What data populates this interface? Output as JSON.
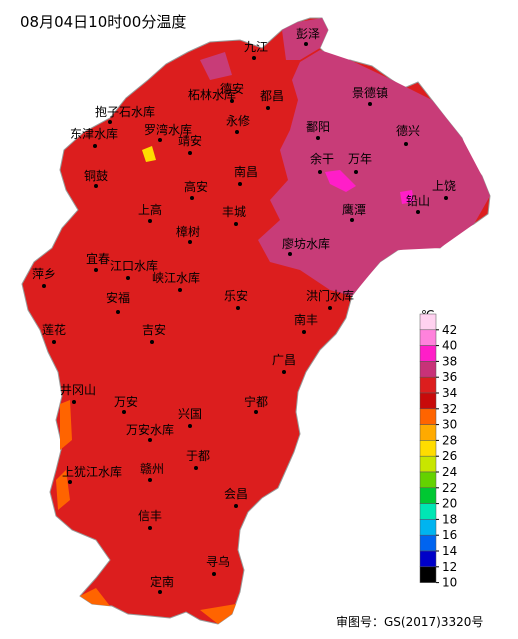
{
  "title": "08月04日10时00分温度",
  "footer": "审图号：GS(2017)3320号",
  "cities": [
    "彭泽",
    "九江",
    "德安",
    "都昌",
    "柘林水库",
    "景德镇",
    "抱子石水库",
    "永修",
    "鄱阳",
    "德兴",
    "东津水库",
    "罗湾水库",
    "靖安",
    "铜鼓",
    "余干",
    "万年",
    "南昌",
    "高安",
    "上饶",
    "铅山",
    "上高",
    "丰城",
    "鹰潭",
    "樟树",
    "廖坊水库",
    "宜春",
    "江口水库",
    "萍乡",
    "峡江水库",
    "乐安",
    "洪门水库",
    "安福",
    "莲花",
    "南丰",
    "吉安",
    "广昌",
    "井冈山",
    "万安",
    "宁都",
    "兴国",
    "万安水库",
    "于都",
    "上犹江水库",
    "赣州",
    "会昌",
    "信丰",
    "寻乌",
    "定南"
  ],
  "legend": {
    "unit": "℃",
    "ticks": [
      42,
      40,
      38,
      36,
      34,
      32,
      30,
      28,
      26,
      24,
      22,
      20,
      18,
      16,
      14,
      12,
      10
    ],
    "colors": [
      "#ffd2f0",
      "#ff82dc",
      "#ff1ec8",
      "#c83278",
      "#dc1e1e",
      "#c80a0a",
      "#ff6400",
      "#ffaa00",
      "#ffdc00",
      "#c8e600",
      "#64d200",
      "#00c832",
      "#00e6b4",
      "#00b4f0",
      "#0064f0",
      "#0000c8",
      "#000000"
    ]
  }
}
